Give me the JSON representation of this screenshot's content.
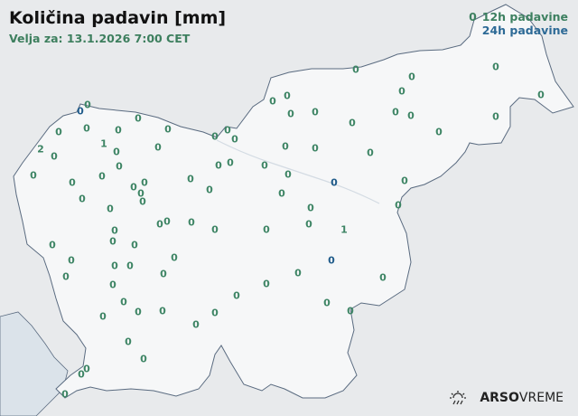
{
  "header": {
    "title": "Količina padavin [mm]",
    "valid_for": "Velja za: 13.1.2026 7:00 CET"
  },
  "legend": {
    "sample_value": "0",
    "items": [
      {
        "label": "12h padavine",
        "color": "#3e8565"
      },
      {
        "label": "24h padavine",
        "color": "#1f5b8a"
      }
    ]
  },
  "brand": {
    "bold": "ARSO",
    "light": "VREME",
    "icon": "sun-rain-icon"
  },
  "colors": {
    "country_fill": "#f6f7f8",
    "surroundings": "#e8eaec",
    "sea": "#dbe3ea",
    "border": "#5a6b80"
  },
  "stations": [
    {
      "v": "0",
      "t": "12h"
    },
    {
      "v": "0",
      "t": "24h"
    },
    {
      "v": "0",
      "t": "12h"
    },
    {
      "v": "0",
      "t": "12h"
    },
    {
      "v": "0",
      "t": "12h"
    },
    {
      "v": "0",
      "t": "12h"
    },
    {
      "v": "0",
      "t": "12h"
    },
    {
      "v": "0",
      "t": "12h"
    },
    {
      "v": "0",
      "t": "12h"
    },
    {
      "v": "0",
      "t": "12h"
    },
    {
      "v": "1",
      "t": "12h"
    },
    {
      "v": "2",
      "t": "12h"
    },
    {
      "v": "0",
      "t": "12h"
    },
    {
      "v": "0",
      "t": "12h"
    },
    {
      "v": "0",
      "t": "12h"
    },
    {
      "v": "0",
      "t": "12h"
    },
    {
      "v": "0",
      "t": "12h"
    },
    {
      "v": "0",
      "t": "12h"
    },
    {
      "v": "0",
      "t": "12h"
    },
    {
      "v": "0",
      "t": "12h"
    },
    {
      "v": "0",
      "t": "12h"
    },
    {
      "v": "0",
      "t": "12h"
    },
    {
      "v": "0",
      "t": "12h"
    },
    {
      "v": "0",
      "t": "12h"
    },
    {
      "v": "0",
      "t": "12h"
    },
    {
      "v": "0",
      "t": "12h"
    },
    {
      "v": "0",
      "t": "12h"
    },
    {
      "v": "0",
      "t": "12h"
    },
    {
      "v": "0",
      "t": "12h"
    },
    {
      "v": "0",
      "t": "12h"
    },
    {
      "v": "0",
      "t": "12h"
    },
    {
      "v": "0",
      "t": "12h"
    },
    {
      "v": "0",
      "t": "12h"
    },
    {
      "v": "0",
      "t": "12h"
    },
    {
      "v": "0",
      "t": "12h"
    },
    {
      "v": "0",
      "t": "12h"
    },
    {
      "v": "0",
      "t": "12h"
    },
    {
      "v": "0",
      "t": "12h"
    },
    {
      "v": "0",
      "t": "12h"
    },
    {
      "v": "0",
      "t": "12h"
    },
    {
      "v": "0",
      "t": "12h"
    },
    {
      "v": "0",
      "t": "12h"
    },
    {
      "v": "0",
      "t": "12h"
    },
    {
      "v": "0",
      "t": "12h"
    },
    {
      "v": "0",
      "t": "12h"
    },
    {
      "v": "0",
      "t": "12h"
    },
    {
      "v": "0",
      "t": "12h"
    },
    {
      "v": "0",
      "t": "12h"
    },
    {
      "v": "0",
      "t": "24h"
    },
    {
      "v": "0",
      "t": "12h"
    },
    {
      "v": "0",
      "t": "12h"
    },
    {
      "v": "0",
      "t": "12h"
    },
    {
      "v": "0",
      "t": "12h"
    },
    {
      "v": "0",
      "t": "12h"
    },
    {
      "v": "0",
      "t": "12h"
    },
    {
      "v": "1",
      "t": "12h"
    },
    {
      "v": "0",
      "t": "12h"
    },
    {
      "v": "0",
      "t": "12h"
    },
    {
      "v": "0",
      "t": "12h"
    },
    {
      "v": "0",
      "t": "12h"
    },
    {
      "v": "0",
      "t": "12h"
    },
    {
      "v": "0",
      "t": "12h"
    },
    {
      "v": "0",
      "t": "12h"
    },
    {
      "v": "0",
      "t": "12h"
    },
    {
      "v": "0",
      "t": "12h"
    },
    {
      "v": "0",
      "t": "12h"
    },
    {
      "v": "0",
      "t": "12h"
    },
    {
      "v": "0",
      "t": "12h"
    },
    {
      "v": "0",
      "t": "12h"
    },
    {
      "v": "0",
      "t": "12h"
    },
    {
      "v": "0",
      "t": "12h"
    },
    {
      "v": "0",
      "t": "12h"
    },
    {
      "v": "0",
      "t": "12h"
    },
    {
      "v": "0",
      "t": "12h"
    },
    {
      "v": "0",
      "t": "12h"
    },
    {
      "v": "0",
      "t": "12h"
    },
    {
      "v": "0",
      "t": "12h"
    },
    {
      "v": "0",
      "t": "12h"
    },
    {
      "v": "0",
      "t": "12h"
    },
    {
      "v": "0",
      "t": "12h"
    },
    {
      "v": "0",
      "t": "24h"
    },
    {
      "v": "0",
      "t": "12h"
    },
    {
      "v": "0",
      "t": "12h"
    },
    {
      "v": "0",
      "t": "12h"
    },
    {
      "v": "0",
      "t": "12h"
    },
    {
      "v": "0",
      "t": "12h"
    },
    {
      "v": "0",
      "t": "12h"
    },
    {
      "v": "0",
      "t": "12h"
    },
    {
      "v": "0",
      "t": "12h"
    }
  ]
}
